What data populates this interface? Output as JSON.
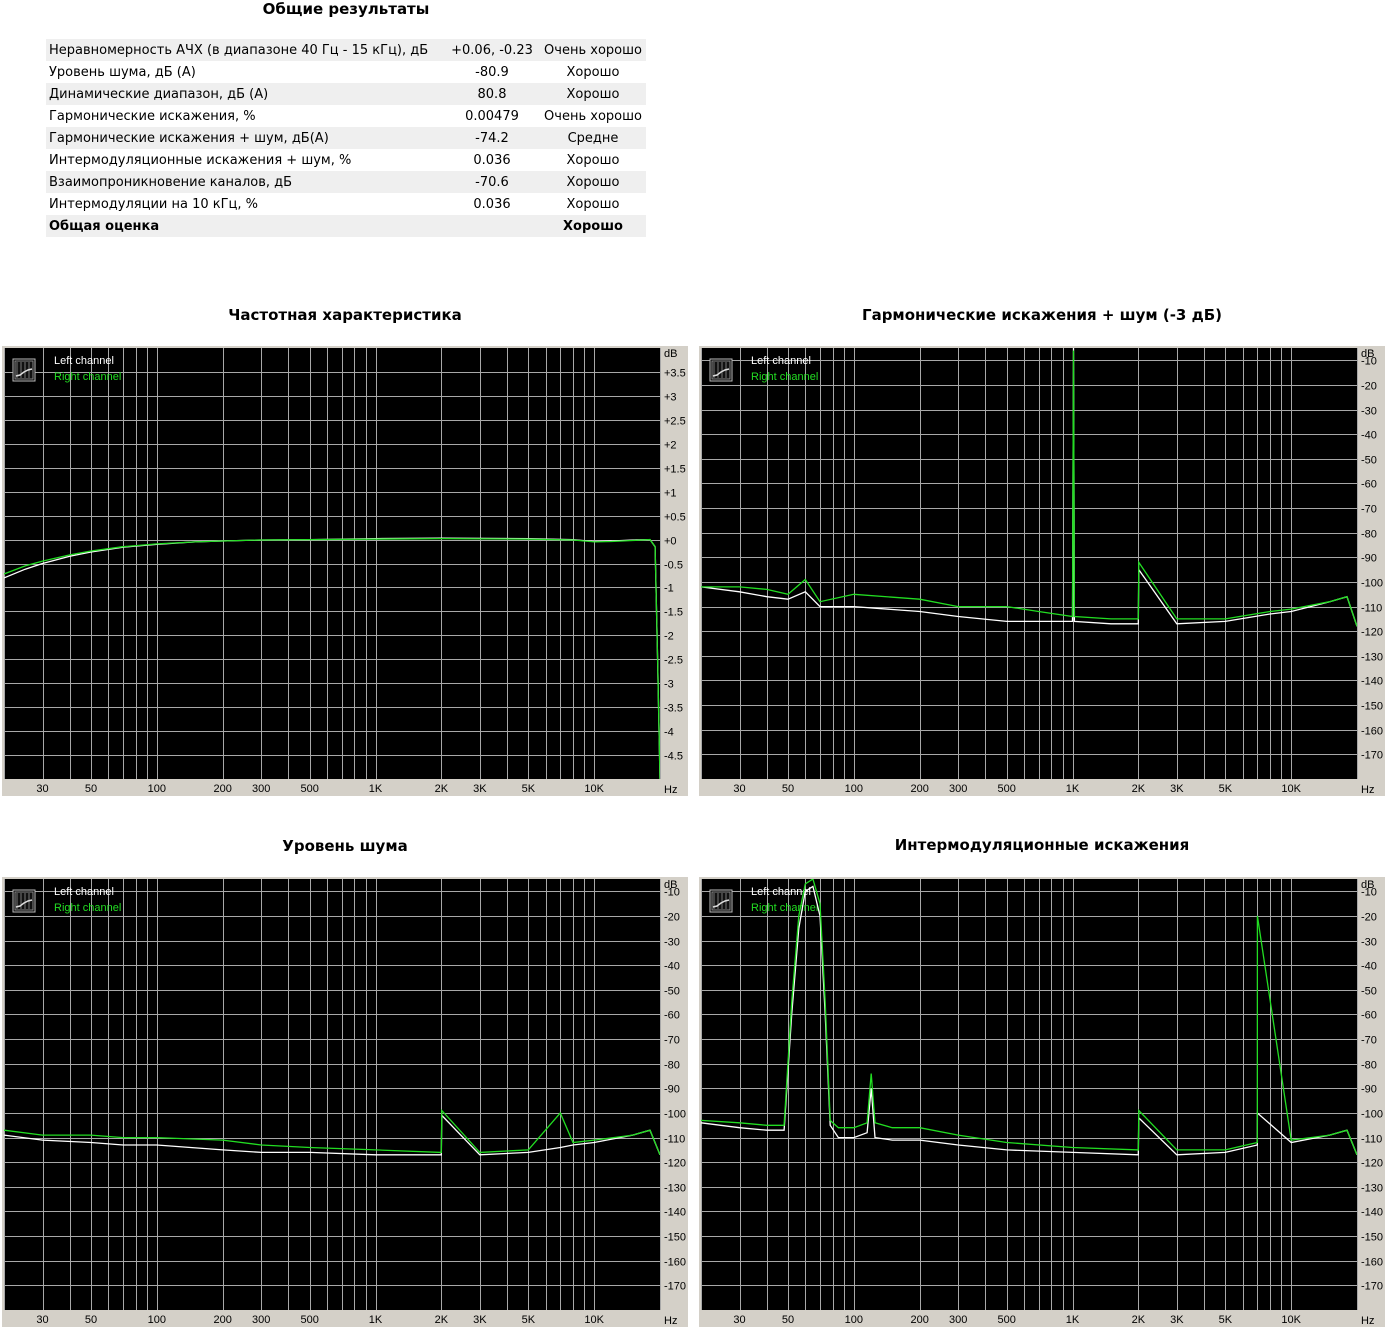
{
  "summary": {
    "title": "Общие результаты",
    "rows": [
      {
        "name": "Неравномерность АЧХ (в диапазоне 40 Гц - 15 кГц), дБ",
        "value": "+0.06, -0.23",
        "rating": "Очень хорошо"
      },
      {
        "name": "Уровень шума, дБ (А)",
        "value": "-80.9",
        "rating": "Хорошо"
      },
      {
        "name": "Динамические диапазон, дБ (А)",
        "value": "80.8",
        "rating": "Хорошо"
      },
      {
        "name": "Гармонические искажения, %",
        "value": "0.00479",
        "rating": "Очень хорошо"
      },
      {
        "name": "Гармонические искажения + шум, дБ(А)",
        "value": "-74.2",
        "rating": "Средне"
      },
      {
        "name": "Интермодуляционные искажения + шум, %",
        "value": "0.036",
        "rating": "Хорошо"
      },
      {
        "name": "Взаимопроникновение каналов, дБ",
        "value": "-70.6",
        "rating": "Хорошо"
      },
      {
        "name": "Интермодуляции на 10 кГц, %",
        "value": "0.036",
        "rating": "Хорошо"
      }
    ],
    "total": {
      "name": "Общая оценка",
      "value": "",
      "rating": "Хорошо"
    }
  },
  "legend": {
    "left": "Left channel",
    "right": "Right channel"
  },
  "colors": {
    "left": "#ffffff",
    "right": "#22dd22",
    "background": "#000000",
    "grid": "#a8a8a8",
    "frame": "#d4d0c8"
  },
  "chart_data": [
    {
      "type": "line",
      "title": "Частотная характеристика",
      "x_scale": "log",
      "x_ticks": [
        "30",
        "50",
        "100",
        "200",
        "300",
        "500",
        "1K",
        "2K",
        "3K",
        "5K",
        "10K"
      ],
      "x_unit": "Hz",
      "y_unit": "dB",
      "ylim": [
        -5,
        4
      ],
      "y_ticks": [
        "+3.5",
        "+3",
        "+2.5",
        "+2",
        "+1.5",
        "+1",
        "+0.5",
        "+0",
        "-0.5",
        "-1",
        "-1.5",
        "-2",
        "-2.5",
        "-3",
        "-3.5",
        "-4",
        "-4.5"
      ],
      "series": [
        {
          "name": "Left channel",
          "x": [
            20,
            25,
            30,
            40,
            50,
            70,
            100,
            150,
            200,
            300,
            500,
            1000,
            2000,
            5000,
            8000,
            10000,
            12000,
            15000,
            18000,
            19000,
            19500,
            20000
          ],
          "y": [
            -0.8,
            -0.62,
            -0.5,
            -0.35,
            -0.26,
            -0.16,
            -0.1,
            -0.05,
            -0.03,
            -0.01,
            0.0,
            0.02,
            0.03,
            0.02,
            0.0,
            -0.04,
            -0.03,
            -0.01,
            0.0,
            -0.15,
            -2.5,
            -5.0
          ]
        },
        {
          "name": "Right channel",
          "x": [
            20,
            25,
            30,
            40,
            50,
            70,
            100,
            150,
            200,
            300,
            500,
            1000,
            2000,
            5000,
            8000,
            10000,
            12000,
            15000,
            18000,
            19000,
            19500,
            20000
          ],
          "y": [
            -0.72,
            -0.55,
            -0.45,
            -0.32,
            -0.24,
            -0.15,
            -0.09,
            -0.05,
            -0.03,
            -0.01,
            0.0,
            0.01,
            0.02,
            0.01,
            -0.01,
            -0.05,
            -0.04,
            -0.02,
            0.0,
            -0.15,
            -2.5,
            -5.0
          ]
        }
      ]
    },
    {
      "type": "line",
      "title": "Гармонические искажения + шум (-3 дБ)",
      "x_scale": "log",
      "x_ticks": [
        "30",
        "50",
        "100",
        "200",
        "300",
        "500",
        "1K",
        "2K",
        "3K",
        "5K",
        "10K"
      ],
      "x_unit": "Hz",
      "y_unit": "dB",
      "ylim": [
        -180,
        -5
      ],
      "y_ticks": [
        "-10",
        "-20",
        "-30",
        "-40",
        "-50",
        "-60",
        "-70",
        "-80",
        "-90",
        "-100",
        "-110",
        "-120",
        "-130",
        "-140",
        "-150",
        "-160",
        "-170"
      ],
      "series": [
        {
          "name": "Left channel",
          "x": [
            20,
            30,
            40,
            50,
            60,
            70,
            100,
            200,
            300,
            500,
            700,
            1000,
            1010,
            1020,
            1500,
            2000,
            2010,
            3000,
            5000,
            8000,
            10000,
            15000,
            18000,
            20000
          ],
          "y": [
            -102,
            -104,
            -106,
            -107,
            -104,
            -110,
            -110,
            -112,
            -114,
            -116,
            -116,
            -116,
            -4,
            -116,
            -117,
            -117,
            -95,
            -117,
            -116,
            -113,
            -112,
            -108,
            -106,
            -118
          ]
        },
        {
          "name": "Right channel",
          "x": [
            20,
            30,
            40,
            50,
            60,
            70,
            100,
            200,
            300,
            500,
            700,
            1000,
            1010,
            1020,
            1500,
            2000,
            2010,
            3000,
            5000,
            8000,
            10000,
            15000,
            18000,
            20000
          ],
          "y": [
            -102,
            -102,
            -103,
            -105,
            -99,
            -108,
            -105,
            -107,
            -110,
            -110,
            -112,
            -114,
            -6,
            -114,
            -115,
            -115,
            -92,
            -115,
            -115,
            -112,
            -111,
            -108,
            -106,
            -118
          ]
        }
      ]
    },
    {
      "type": "line",
      "title": "Уровень шума",
      "x_scale": "log",
      "x_ticks": [
        "30",
        "50",
        "100",
        "200",
        "300",
        "500",
        "1K",
        "2K",
        "3K",
        "5K",
        "10K"
      ],
      "x_unit": "Hz",
      "y_unit": "dB",
      "ylim": [
        -180,
        -5
      ],
      "y_ticks": [
        "-10",
        "-20",
        "-30",
        "-40",
        "-50",
        "-60",
        "-70",
        "-80",
        "-90",
        "-100",
        "-110",
        "-120",
        "-130",
        "-140",
        "-150",
        "-160",
        "-170"
      ],
      "series": [
        {
          "name": "Left channel",
          "x": [
            20,
            30,
            50,
            70,
            100,
            200,
            300,
            500,
            1000,
            2000,
            2010,
            3000,
            5000,
            7000,
            8000,
            10000,
            15000,
            18000,
            20000
          ],
          "y": [
            -109,
            -111,
            -112,
            -113,
            -113,
            -115,
            -116,
            -116,
            -117,
            -117,
            -101,
            -117,
            -116,
            -114,
            -113,
            -112,
            -109,
            -107,
            -117
          ]
        },
        {
          "name": "Right channel",
          "x": [
            20,
            30,
            50,
            70,
            100,
            200,
            300,
            500,
            1000,
            2000,
            2010,
            3000,
            5000,
            7000,
            8000,
            10000,
            15000,
            18000,
            20000
          ],
          "y": [
            -107,
            -109,
            -109,
            -110,
            -110,
            -111,
            -113,
            -114,
            -115,
            -116,
            -99,
            -116,
            -115,
            -100,
            -112,
            -111,
            -109,
            -107,
            -117
          ]
        }
      ]
    },
    {
      "type": "line",
      "title": "Интермодуляционные искажения",
      "x_scale": "log",
      "x_ticks": [
        "30",
        "50",
        "100",
        "200",
        "300",
        "500",
        "1K",
        "2K",
        "3K",
        "5K",
        "10K"
      ],
      "x_unit": "Hz",
      "y_unit": "dB",
      "ylim": [
        -180,
        -5
      ],
      "y_ticks": [
        "-10",
        "-20",
        "-30",
        "-40",
        "-50",
        "-60",
        "-70",
        "-80",
        "-90",
        "-100",
        "-110",
        "-120",
        "-130",
        "-140",
        "-150",
        "-160",
        "-170"
      ],
      "series": [
        {
          "name": "Left channel",
          "x": [
            20,
            30,
            40,
            48,
            52,
            56,
            60,
            65,
            70,
            74,
            78,
            85,
            100,
            115,
            120,
            125,
            150,
            200,
            300,
            500,
            1000,
            2000,
            2010,
            3000,
            5000,
            7000,
            7010,
            10000,
            15000,
            18000,
            20000
          ],
          "y": [
            -104,
            -106,
            -107,
            -107,
            -60,
            -25,
            -10,
            -8,
            -20,
            -60,
            -105,
            -110,
            -110,
            -108,
            -90,
            -110,
            -111,
            -111,
            -113,
            -115,
            -116,
            -117,
            -102,
            -117,
            -116,
            -113,
            -100,
            -112,
            -109,
            -107,
            -117
          ]
        },
        {
          "name": "Right channel",
          "x": [
            20,
            30,
            40,
            48,
            52,
            56,
            60,
            65,
            70,
            74,
            78,
            85,
            100,
            115,
            120,
            125,
            150,
            200,
            300,
            500,
            1000,
            2000,
            2010,
            3000,
            5000,
            7000,
            7010,
            10000,
            15000,
            18000,
            20000
          ],
          "y": [
            -103,
            -104,
            -105,
            -105,
            -55,
            -20,
            -7,
            -5,
            -15,
            -55,
            -103,
            -106,
            -106,
            -104,
            -84,
            -104,
            -106,
            -106,
            -109,
            -112,
            -114,
            -115,
            -99,
            -115,
            -115,
            -112,
            -20,
            -111,
            -109,
            -107,
            -117
          ]
        }
      ]
    }
  ]
}
